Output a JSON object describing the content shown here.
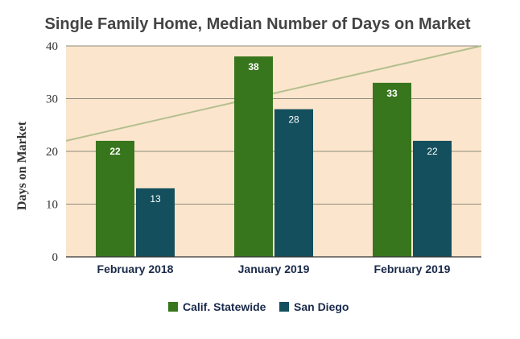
{
  "chart_data": {
    "type": "bar",
    "title": "Single Family Home, Median Number of Days on Market",
    "xlabel": "",
    "ylabel": "Days on Market",
    "ylim": [
      0,
      40
    ],
    "yticks": [
      0,
      10,
      20,
      30,
      40
    ],
    "categories": [
      "February 2018",
      "January 2019",
      "February 2019"
    ],
    "series": [
      {
        "name": "Calif. Statewide",
        "values": [
          22,
          38,
          33
        ],
        "color": "#38761d"
      },
      {
        "name": "San Diego",
        "values": [
          13,
          28,
          22
        ],
        "color": "#134f5c"
      }
    ],
    "trendline": {
      "color": "#b3bf8f",
      "y_start": 22,
      "y_end": 40
    },
    "grid": true,
    "plot_background": "#fce5cd",
    "legend": "bottom"
  }
}
